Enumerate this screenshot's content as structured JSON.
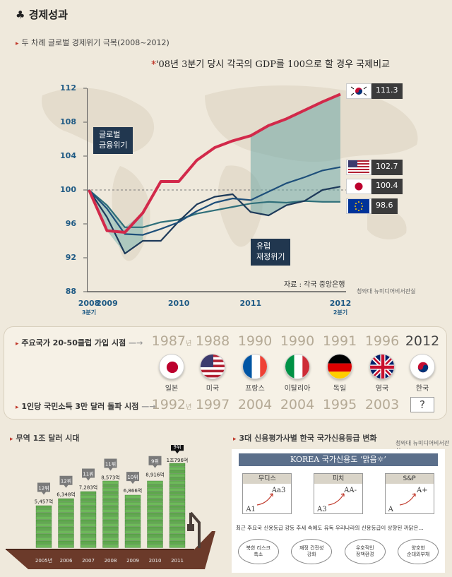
{
  "title": "경제성과",
  "section1": {
    "title": "두 차례 글로벌 경제위기 극복(2008~2012)",
    "note_star": "*",
    "note": "'08년 3분기 당시 각국의 GDP를 100으로 할 경우 국제비교",
    "source": "자료 : 각국 중앙은행",
    "credit": "청와대 뉴미디어비서관실",
    "label_crisis1": "글로벌\n금융위기",
    "label_crisis2": "유럽\n재정위기"
  },
  "chart_data": {
    "type": "line",
    "title": "'08년 3분기 당시 각국의 GDP를 100으로 할 경우 국제비교",
    "xlabel": "",
    "ylabel": "",
    "x_ticks": [
      "2008",
      "2009",
      "2010",
      "2011",
      "2012"
    ],
    "x_sub": {
      "2008": "3분기",
      "2012": "2분기"
    },
    "y_ticks": [
      88,
      92,
      96,
      100,
      104,
      108,
      112
    ],
    "ylim": [
      88,
      112
    ],
    "x": [
      2008.75,
      2009.0,
      2009.25,
      2009.5,
      2009.75,
      2010.0,
      2010.25,
      2010.5,
      2010.75,
      2011.0,
      2011.25,
      2011.5,
      2011.75,
      2012.0,
      2012.25
    ],
    "series": [
      {
        "name": "한국",
        "color": "#d2294a",
        "end_label": "111.3",
        "values": [
          100,
          95.2,
          95.0,
          97.3,
          101.0,
          101.0,
          103.5,
          105.0,
          105.8,
          106.4,
          107.6,
          108.4,
          109.4,
          110.4,
          111.3
        ]
      },
      {
        "name": "미국",
        "color": "#1e4f7a",
        "end_label": "102.7",
        "values": [
          100,
          97.8,
          94.8,
          94.7,
          95.4,
          96.2,
          97.5,
          98.5,
          99.0,
          98.8,
          99.8,
          100.8,
          101.5,
          102.3,
          102.7
        ]
      },
      {
        "name": "일본",
        "color": "#1e3a5a",
        "end_label": "100.4",
        "values": [
          100,
          96.8,
          92.5,
          94.0,
          94.0,
          96.3,
          98.3,
          99.2,
          99.5,
          97.4,
          97.0,
          98.2,
          98.7,
          100.0,
          100.4
        ]
      },
      {
        "name": "유로존",
        "color": "#2f6f7a",
        "end_label": "98.6",
        "values": [
          100,
          98.2,
          95.6,
          95.6,
          96.2,
          96.5,
          97.2,
          97.6,
          98.0,
          98.4,
          98.6,
          98.5,
          98.7,
          98.6,
          98.6
        ]
      }
    ]
  },
  "section2": {
    "row1_label": "주요국가 20-50클럽 가입 시점",
    "row2_label": "1인당 국민소득 3만 달러 돌파 시점",
    "nyeon": "년",
    "countries": [
      {
        "name": "일본",
        "club": "1987",
        "income": "1992",
        "flag": "japan"
      },
      {
        "name": "미국",
        "club": "1988",
        "income": "1997",
        "flag": "usa"
      },
      {
        "name": "프랑스",
        "club": "1990",
        "income": "2004",
        "flag": "france"
      },
      {
        "name": "이탈리아",
        "club": "1990",
        "income": "2004",
        "flag": "italy"
      },
      {
        "name": "독일",
        "club": "1991",
        "income": "1995",
        "flag": "germany"
      },
      {
        "name": "영국",
        "club": "1996",
        "income": "2003",
        "flag": "uk"
      },
      {
        "name": "한국",
        "club": "2012",
        "income": "?",
        "flag": "korea"
      }
    ]
  },
  "section3": {
    "title": "무역 1조 달러 시대",
    "bars": [
      {
        "year": "2005년",
        "value": "5,457억",
        "rank": "12위",
        "amount": 5457
      },
      {
        "year": "2006",
        "value": "6,348억",
        "rank": "12위",
        "amount": 6348
      },
      {
        "year": "2007",
        "value": "7,283억",
        "rank": "11위",
        "amount": 7283
      },
      {
        "year": "2008",
        "value": "8,573억",
        "rank": "11위",
        "amount": 8573
      },
      {
        "year": "2009",
        "value": "6,866억",
        "rank": "10위",
        "amount": 6866
      },
      {
        "year": "2010",
        "value": "8,916억",
        "rank": "9위",
        "amount": 8916
      },
      {
        "year": "2011",
        "value": "1조796억",
        "rank": "9위",
        "amount": 10796
      }
    ]
  },
  "section4": {
    "title": "3대 신용평가사별 한국 국가신용등급 변화",
    "credit": "청와대 뉴미디어비서관실",
    "banner": "KOREA 국가신용도 ‘맑음☼’",
    "agencies": [
      {
        "name": "무디스",
        "from": "A1",
        "to": "Aa3"
      },
      {
        "name": "피치",
        "from": "A3",
        "to": "AA-"
      },
      {
        "name": "S&P",
        "from": "A",
        "to": "A+"
      }
    ],
    "caption": "최근 주요국 신용등급 강등 추세 속에도 유독 우리나라의 신용등급이 상향된 까닭은...",
    "reasons": [
      "북한 리스크\n축소",
      "재정 건전성\n강화",
      "우호적인\n정책환경",
      "양호한\n순대외부채"
    ]
  }
}
